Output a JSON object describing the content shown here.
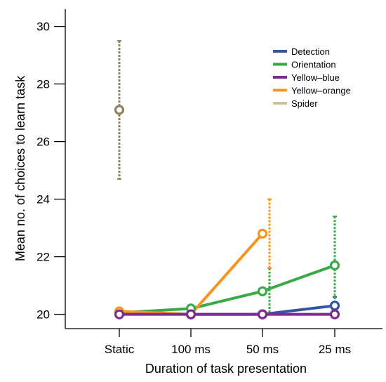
{
  "chart_data": {
    "type": "line",
    "xlabel": "Duration of task presentation",
    "ylabel": "Mean no. of choices to learn task",
    "categories": [
      "Static",
      "100 ms",
      "50 ms",
      "25 ms"
    ],
    "ylim": [
      19.6,
      30.6
    ],
    "yticks": [
      20,
      22,
      24,
      26,
      28,
      30
    ],
    "grid": false,
    "legend_position": "top-right",
    "series": [
      {
        "name": "Detection",
        "color": "#3553a4",
        "values": [
          20.05,
          20.0,
          20.0,
          20.3
        ],
        "errors": [
          null,
          null,
          null,
          [
            20.0,
            20.6
          ]
        ]
      },
      {
        "name": "Orientation",
        "color": "#3aaa49",
        "values": [
          20.05,
          20.2,
          20.8,
          21.7
        ],
        "errors": [
          null,
          null,
          [
            20.0,
            21.6
          ],
          [
            20.0,
            23.4
          ]
        ]
      },
      {
        "name": "Yellow–blue",
        "color": "#7b2c8f",
        "values": [
          20.0,
          20.0,
          20.0,
          20.0
        ],
        "errors": [
          null,
          null,
          null,
          null
        ]
      },
      {
        "name": "Yellow–orange",
        "color": "#f7941d",
        "values": [
          20.1,
          20.0,
          22.8,
          null
        ],
        "errors": [
          [
            20.0,
            20.2
          ],
          null,
          [
            21.6,
            24.0
          ],
          null
        ]
      },
      {
        "name": "Spider",
        "color": "#8c8163",
        "legend_color": "#c9c49a",
        "values": [
          27.1,
          null,
          null,
          null
        ],
        "errors": [
          [
            24.7,
            29.5
          ],
          null,
          null,
          null
        ]
      }
    ]
  }
}
